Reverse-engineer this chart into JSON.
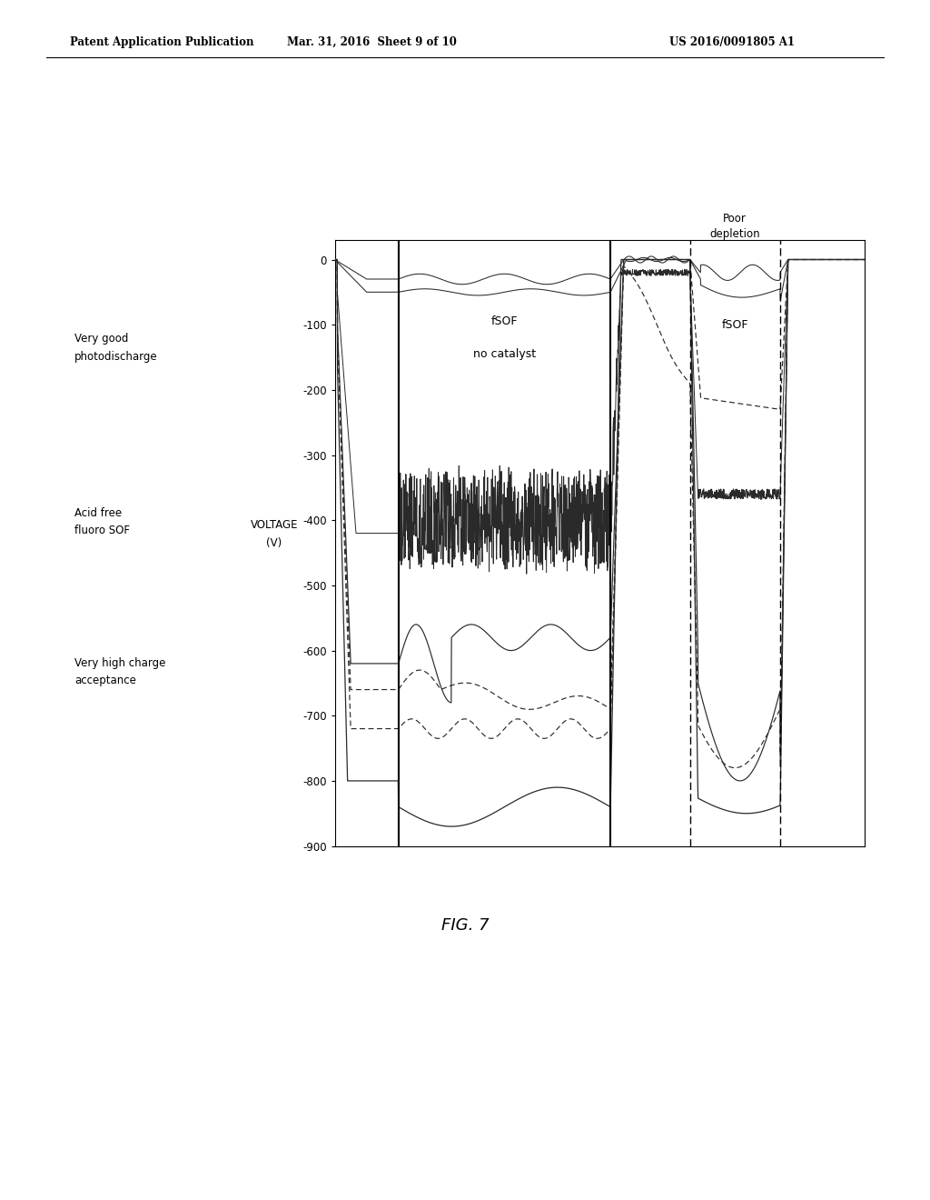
{
  "header_left": "Patent Application Publication",
  "header_mid": "Mar. 31, 2016  Sheet 9 of 10",
  "header_right": "US 2016/0091805 A1",
  "fig_label": "FIG. 7",
  "ylim": [
    -900,
    30
  ],
  "yticks": [
    0,
    -100,
    -200,
    -300,
    -400,
    -500,
    -600,
    -700,
    -800,
    -900
  ],
  "annotation_mid1": "fSOF",
  "annotation_mid2": "no catalyst",
  "annotation_right1": "fSOF",
  "annotation_top1": "Poor",
  "annotation_top2": "depletion",
  "left_ann1a": "Very good",
  "left_ann1b": "photodischarge",
  "left_ann2a": "Acid free",
  "left_ann2b": "fluoro SOF",
  "left_ann3a": "Very high charge",
  "left_ann3b": "acceptance",
  "voltage_label1": "VOLTAGE",
  "voltage_label2": "(V)",
  "vl1": 0.12,
  "vl2": 0.52,
  "vl3": 0.67,
  "vl4": 0.84,
  "bg_color": "#ffffff",
  "line_color": "#2a2a2a"
}
